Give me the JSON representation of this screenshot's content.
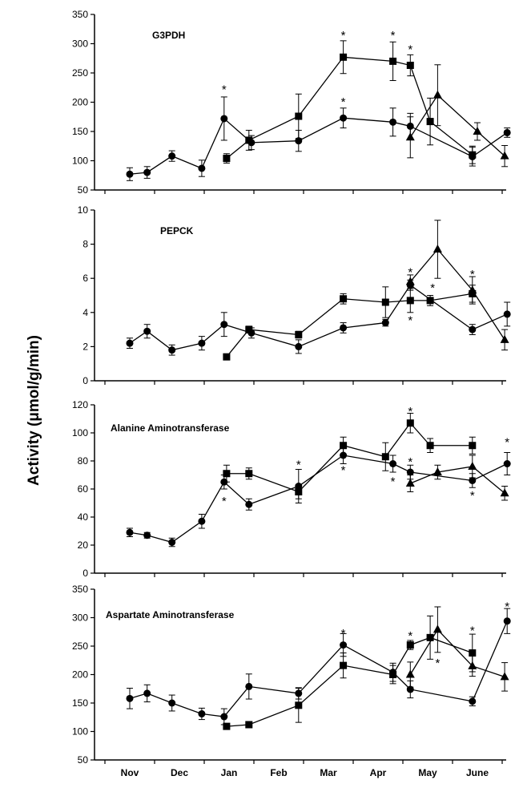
{
  "ylabel": "Activity  (μmol/g/min)",
  "months": [
    "Nov",
    "Dec",
    "Jan",
    "Feb",
    "Mar",
    "Apr",
    "May",
    "June"
  ],
  "chart_data": [
    {
      "type": "line",
      "title": "G3PDH",
      "ylim": [
        50,
        350
      ],
      "yticks": [
        50,
        100,
        150,
        200,
        250,
        300,
        350
      ],
      "series": [
        {
          "marker": "circle",
          "x": [
            0.0,
            0.35,
            0.85,
            1.45,
            1.9,
            2.45,
            3.4,
            4.3,
            5.3,
            5.65,
            6.9,
            7.6
          ],
          "y": [
            77,
            80,
            108,
            87,
            172,
            131,
            134,
            173,
            166,
            159,
            107,
            148
          ],
          "err": [
            11,
            10,
            9,
            14,
            37,
            12,
            18,
            17,
            24,
            22,
            16,
            8
          ]
        },
        {
          "marker": "square",
          "x": [
            1.95,
            2.4,
            3.4,
            4.3,
            5.3,
            5.65,
            6.05,
            6.9
          ],
          "y": [
            104,
            135,
            176,
            277,
            270,
            263,
            167,
            110
          ],
          "err": [
            8,
            17,
            38,
            28,
            33,
            18,
            40,
            15
          ]
        },
        {
          "marker": "triangle",
          "x": [
            5.65,
            6.2,
            7.0,
            7.55
          ],
          "y": [
            140,
            212,
            150,
            108
          ],
          "err": [
            35,
            52,
            15,
            18
          ]
        }
      ],
      "stars": [
        {
          "x": 1.9,
          "y": 223
        },
        {
          "x": 4.3,
          "y": 316
        },
        {
          "x": 5.3,
          "y": 316
        },
        {
          "x": 5.65,
          "y": 292
        },
        {
          "x": 4.3,
          "y": 202
        }
      ]
    },
    {
      "type": "line",
      "title": "PEPCK",
      "ylim": [
        0,
        10
      ],
      "yticks": [
        0,
        2,
        4,
        6,
        8,
        10
      ],
      "series": [
        {
          "marker": "circle",
          "x": [
            0.0,
            0.35,
            0.85,
            1.45,
            1.9,
            2.45,
            3.4,
            4.3,
            5.15,
            5.65,
            6.9,
            7.6
          ],
          "y": [
            2.2,
            2.9,
            1.8,
            2.2,
            3.3,
            2.8,
            2.0,
            3.1,
            3.4,
            5.6,
            3.0,
            3.9
          ],
          "err": [
            0.3,
            0.4,
            0.3,
            0.4,
            0.7,
            0.3,
            0.4,
            0.3,
            0.2,
            0.3,
            0.3,
            0.7
          ]
        },
        {
          "marker": "square",
          "x": [
            1.95,
            2.4,
            3.4,
            4.3,
            5.15,
            5.65,
            6.05,
            6.9
          ],
          "y": [
            1.4,
            3.0,
            2.7,
            4.8,
            4.6,
            4.7,
            4.7,
            5.1
          ],
          "err": [
            0.1,
            0.2,
            0.2,
            0.3,
            0.9,
            0.7,
            0.3,
            0.5
          ]
        },
        {
          "marker": "triangle",
          "x": [
            5.65,
            6.2,
            6.9,
            7.55
          ],
          "y": [
            5.8,
            7.7,
            5.3,
            2.4
          ],
          "err": [
            0.4,
            1.7,
            0.8,
            0.6
          ]
        }
      ],
      "stars": [
        {
          "x": 5.65,
          "y": 6.4
        },
        {
          "x": 5.65,
          "y": 3.6
        },
        {
          "x": 6.1,
          "y": 5.5
        },
        {
          "x": 6.9,
          "y": 6.3
        }
      ]
    },
    {
      "type": "line",
      "title": "Alanine Aminotransferase",
      "ylim": [
        0,
        120
      ],
      "yticks": [
        0,
        20,
        40,
        60,
        80,
        100,
        120
      ],
      "series": [
        {
          "marker": "circle",
          "x": [
            0.0,
            0.35,
            0.85,
            1.45,
            1.9,
            2.4,
            3.4,
            4.3,
            5.3,
            5.65,
            6.9,
            7.6
          ],
          "y": [
            29,
            27,
            22,
            37,
            65,
            49,
            62,
            84,
            78,
            72,
            66,
            78
          ],
          "err": [
            3,
            2,
            3,
            5,
            5,
            4,
            12,
            6,
            6,
            5,
            5,
            8
          ]
        },
        {
          "marker": "square",
          "x": [
            1.95,
            2.4,
            3.4,
            4.3,
            5.15,
            5.65,
            6.05,
            6.9
          ],
          "y": [
            71,
            71,
            58,
            91,
            83,
            107,
            91,
            91
          ],
          "err": [
            6,
            4,
            5,
            6,
            10,
            7,
            5,
            6
          ]
        },
        {
          "marker": "triangle",
          "x": [
            5.65,
            6.2,
            6.9,
            7.55
          ],
          "y": [
            64,
            72,
            76,
            57
          ],
          "err": [
            6,
            5,
            8,
            5
          ]
        }
      ],
      "stars": [
        {
          "x": 3.4,
          "y": 78
        },
        {
          "x": 5.65,
          "y": 116
        },
        {
          "x": 7.6,
          "y": 94
        },
        {
          "x": 1.9,
          "y": 52
        },
        {
          "x": 4.3,
          "y": 74
        },
        {
          "x": 5.3,
          "y": 66
        },
        {
          "x": 5.65,
          "y": 80
        },
        {
          "x": 6.9,
          "y": 56
        }
      ]
    },
    {
      "type": "line",
      "title": "Aspartate Aminotransferase",
      "ylim": [
        50,
        350
      ],
      "yticks": [
        50,
        100,
        150,
        200,
        250,
        300,
        350
      ],
      "series": [
        {
          "marker": "circle",
          "x": [
            0.0,
            0.35,
            0.85,
            1.45,
            1.9,
            2.4,
            3.4,
            4.3,
            5.3,
            5.65,
            6.9,
            7.6
          ],
          "y": [
            158,
            167,
            150,
            131,
            126,
            179,
            167,
            252,
            204,
            174,
            153,
            294
          ],
          "err": [
            18,
            15,
            14,
            10,
            14,
            22,
            10,
            20,
            16,
            15,
            8,
            22
          ]
        },
        {
          "marker": "square",
          "x": [
            1.95,
            2.4,
            3.4,
            4.3,
            5.3,
            5.65,
            6.05,
            6.9
          ],
          "y": [
            109,
            112,
            146,
            216,
            200,
            252,
            265,
            238
          ],
          "err": [
            5,
            5,
            30,
            22,
            16,
            8,
            38,
            33
          ]
        },
        {
          "marker": "triangle",
          "x": [
            5.65,
            6.2,
            6.9,
            7.55
          ],
          "y": [
            200,
            279,
            215,
            196
          ],
          "err": [
            22,
            40,
            18,
            25
          ]
        }
      ],
      "stars": [
        {
          "x": 4.3,
          "y": 274
        },
        {
          "x": 5.65,
          "y": 270
        },
        {
          "x": 6.9,
          "y": 279
        },
        {
          "x": 7.6,
          "y": 321
        },
        {
          "x": 6.2,
          "y": 222
        }
      ]
    }
  ]
}
